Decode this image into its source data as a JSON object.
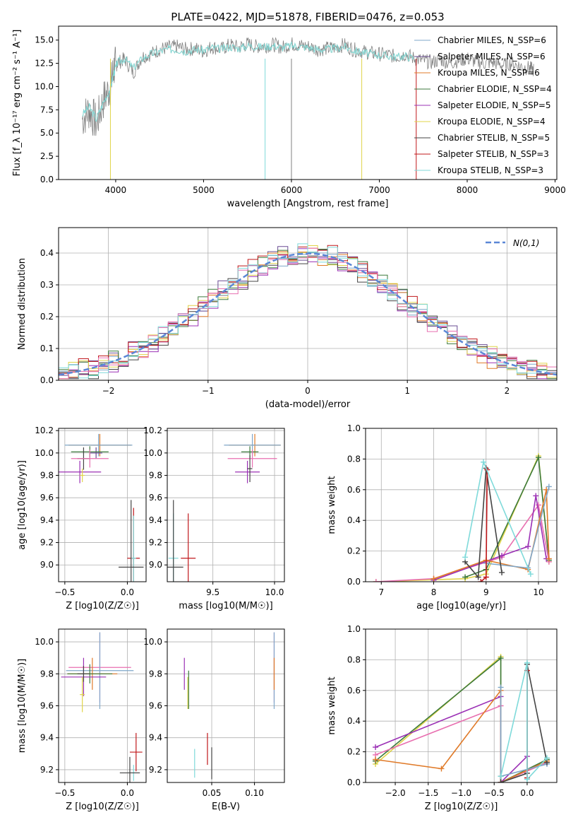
{
  "figure_title": "PLATE=0422, MJD=51878, FIBERID=0476, z=0.053",
  "chart_data": [
    {
      "id": "spectrum",
      "type": "line",
      "title": "PLATE=0422, MJD=51878, FIBERID=0476, z=0.053",
      "xlabel": "wavelength [Angstrom, rest frame]",
      "ylabel": "Flux [f_λ 10⁻¹⁷ erg cm⁻² s⁻¹ A⁻¹]",
      "xlim": [
        3350,
        9020
      ],
      "ylim": [
        0,
        16.5
      ],
      "xticks": [
        4000,
        5000,
        6000,
        7000,
        8000,
        9000
      ],
      "yticks": [
        0.0,
        2.5,
        5.0,
        7.5,
        10.0,
        12.5,
        15.0
      ],
      "grid": false,
      "legend_position": "top-right",
      "legend": [
        {
          "label": "Chabrier MILES, N_SSP=6",
          "color": "#7fa7c9"
        },
        {
          "label": "Salpeter MILES, N_SSP=6",
          "color": "#6a4c93"
        },
        {
          "label": "Kroupa MILES, N_SSP=6",
          "color": "#e07b2a"
        },
        {
          "label": "Chabrier ELODIE, N_SSP=4",
          "color": "#3c7a3c"
        },
        {
          "label": "Salpeter ELODIE, N_SSP=5",
          "color": "#9b30b5"
        },
        {
          "label": "Kroupa ELODIE, N_SSP=4",
          "color": "#e0d44a"
        },
        {
          "label": "Chabrier STELIB, N_SSP=5",
          "color": "#444444"
        },
        {
          "label": "Salpeter STELIB, N_SSP=3",
          "color": "#c0181b"
        },
        {
          "label": "Kroupa STELIB, N_SSP=3",
          "color": "#7fdada"
        }
      ],
      "observed_color": "#808080",
      "model_color": "#7fdada",
      "observed": {
        "x": [
          3620,
          3700,
          3780,
          3860,
          3940,
          3980,
          4020,
          4100,
          4200,
          4300,
          4400,
          4500,
          4600,
          4700,
          4800,
          4900,
          5000,
          5100,
          5200,
          5300,
          5400,
          5500,
          5600,
          5700,
          5800,
          5900,
          6000,
          6100,
          6200,
          6300,
          6400,
          6500,
          6600,
          6700,
          6800,
          6900,
          7000,
          7100,
          7200,
          7300,
          7400,
          7500,
          7600,
          7700,
          7800,
          7900,
          8000,
          8100,
          8200,
          8300,
          8400,
          8500,
          8600,
          8700,
          8760
        ],
        "y": [
          6.5,
          7.5,
          6.0,
          8.5,
          10.0,
          12.0,
          12.5,
          13.0,
          11.5,
          13.2,
          13.5,
          14.0,
          14.2,
          14.3,
          14.0,
          14.1,
          13.8,
          14.3,
          14.0,
          14.5,
          14.2,
          14.6,
          14.3,
          14.4,
          14.5,
          14.2,
          14.6,
          14.4,
          14.3,
          14.0,
          14.1,
          14.2,
          14.5,
          14.0,
          13.8,
          13.6,
          13.5,
          13.4,
          13.2,
          13.5,
          13.0,
          12.8,
          12.6,
          12.9,
          12.5,
          12.8,
          13.0,
          12.7,
          12.5,
          12.6,
          12.3,
          12.5,
          12.2,
          12.0,
          11.8
        ]
      },
      "model": {
        "x": [
          3620,
          3700,
          3780,
          3860,
          3940,
          3980,
          4020,
          4100,
          4200,
          4300,
          4400,
          4500,
          4600,
          4700,
          4800,
          4900,
          5000,
          5100,
          5200,
          5300,
          5400,
          5500,
          5600,
          5700,
          5800,
          5900,
          6000,
          6100,
          6200,
          6300,
          6400,
          6500,
          6600,
          6700,
          6800,
          6900,
          7000,
          7100,
          7200,
          7300,
          7400
        ],
        "y": [
          7.0,
          7.8,
          6.5,
          8.3,
          9.8,
          11.5,
          12.6,
          13.0,
          12.0,
          13.0,
          13.5,
          13.8,
          14.0,
          14.0,
          13.8,
          14.0,
          13.9,
          14.2,
          14.0,
          14.3,
          14.1,
          14.4,
          14.3,
          14.3,
          14.4,
          14.2,
          14.4,
          14.3,
          14.2,
          14.0,
          14.0,
          14.1,
          14.3,
          13.9,
          13.7,
          13.5,
          13.4,
          13.3,
          13.2,
          13.3,
          13.0
        ]
      }
    },
    {
      "id": "residuals",
      "type": "histogram",
      "xlabel": "(data-model)/error",
      "ylabel": "Normed distribution",
      "xlim": [
        -2.5,
        2.5
      ],
      "ylim": [
        0,
        0.48
      ],
      "xticks": [
        -2,
        -1,
        0,
        1,
        2
      ],
      "yticks": [
        0.0,
        0.1,
        0.2,
        0.3,
        0.4
      ],
      "grid": true,
      "legend_position": "top-right",
      "legend": [
        {
          "label": "N(0,1)",
          "color": "#5b87d6",
          "style": "dashed"
        }
      ],
      "bin_width": 0.1,
      "bins_start": -2.5,
      "series": [
        {
          "color": "#7fa7c9",
          "offset": 0.0
        },
        {
          "color": "#6a4c93",
          "offset": 0.015
        },
        {
          "color": "#e07b2a",
          "offset": -0.012
        },
        {
          "color": "#3c7a3c",
          "offset": 0.008
        },
        {
          "color": "#9b30b5",
          "offset": -0.018
        },
        {
          "color": "#e0d44a",
          "offset": 0.01
        },
        {
          "color": "#444444",
          "offset": -0.02
        },
        {
          "color": "#c0181b",
          "offset": 0.02
        },
        {
          "color": "#e86fb0",
          "offset": -0.008
        },
        {
          "color": "#7fdada",
          "offset": 0.012
        }
      ],
      "normal_curve": {
        "mean": 0,
        "sigma": 1
      }
    },
    {
      "id": "age-vs-Z",
      "type": "scatter",
      "xlabel": "Z [log10(Z/Z☉)]",
      "ylabel": "age  [log10(age/yr)]",
      "xlim": [
        -0.55,
        0.15
      ],
      "ylim": [
        8.85,
        10.22
      ],
      "xticks": [
        -0.5,
        0.0
      ],
      "yticks": [
        9.0,
        9.2,
        9.4,
        9.6,
        9.8,
        10.0,
        10.2
      ],
      "grid": true,
      "points": [
        {
          "x": -0.22,
          "y": 10.07,
          "xerr": 0.25,
          "yerr": 0.1,
          "color": "#e07b2a"
        },
        {
          "x": -0.23,
          "y": 10.07,
          "xerr": 0.27,
          "yerr": 0.1,
          "color": "#7fa7c9"
        },
        {
          "x": -0.25,
          "y": 10.0,
          "xerr": 0.05,
          "yerr": 0.05,
          "color": "#6a4c93"
        },
        {
          "x": -0.3,
          "y": 10.01,
          "xerr": 0.15,
          "yerr": 0.05,
          "color": "#3c7a3c"
        },
        {
          "x": -0.35,
          "y": 9.95,
          "xerr": 0.05,
          "yerr": 0.1,
          "color": "#444444"
        },
        {
          "x": -0.3,
          "y": 9.95,
          "xerr": 0.15,
          "yerr": 0.08,
          "color": "#e86fb0"
        },
        {
          "x": -0.38,
          "y": 9.83,
          "xerr": 0.17,
          "yerr": 0.1,
          "color": "#9b30b5"
        },
        {
          "x": -0.36,
          "y": 9.8,
          "xerr": 0.02,
          "yerr": 0.06,
          "color": "#e0d44a"
        },
        {
          "x": 0.05,
          "y": 9.06,
          "xerr": 0.05,
          "yerr": 0.45,
          "color": "#c0181b"
        },
        {
          "x": 0.05,
          "y": 9.06,
          "xerr": 0.02,
          "yerr": 0.38,
          "color": "#7fdada"
        },
        {
          "x": 0.03,
          "y": 8.98,
          "xerr": 0.1,
          "yerr": 0.6,
          "color": "#444444"
        }
      ]
    },
    {
      "id": "age-vs-mass",
      "type": "scatter",
      "xlabel": "mass [log10(M/M☉)]",
      "ylabel": "",
      "xlim": [
        9.13,
        10.08
      ],
      "ylim": [
        8.85,
        10.22
      ],
      "xticks": [
        9.5,
        10.0
      ],
      "yticks": [
        9.0,
        9.2,
        9.4,
        9.6,
        9.8,
        10.0,
        10.2
      ],
      "grid": true,
      "points": [
        {
          "x": 9.84,
          "y": 10.07,
          "xerr": 0.21,
          "yerr": 0.1,
          "color": "#e07b2a"
        },
        {
          "x": 9.82,
          "y": 10.07,
          "xerr": 0.23,
          "yerr": 0.1,
          "color": "#7fa7c9"
        },
        {
          "x": 9.8,
          "y": 10.01,
          "xerr": 0.07,
          "yerr": 0.05,
          "color": "#3c7a3c"
        },
        {
          "x": 9.82,
          "y": 9.95,
          "xerr": 0.2,
          "yerr": 0.08,
          "color": "#e86fb0"
        },
        {
          "x": 9.78,
          "y": 9.83,
          "xerr": 0.1,
          "yerr": 0.1,
          "color": "#9b30b5"
        },
        {
          "x": 9.8,
          "y": 9.86,
          "xerr": 0.02,
          "yerr": 0.12,
          "color": "#444444"
        },
        {
          "x": 9.3,
          "y": 9.06,
          "xerr": 0.06,
          "yerr": 0.4,
          "color": "#c0181b"
        },
        {
          "x": 9.18,
          "y": 9.06,
          "xerr": 0.04,
          "yerr": 0.4,
          "color": "#7fdada"
        },
        {
          "x": 9.18,
          "y": 8.98,
          "xerr": 0.08,
          "yerr": 0.6,
          "color": "#444444"
        }
      ]
    },
    {
      "id": "weight-vs-age",
      "type": "line",
      "xlabel": "age  [log10(age/yr)]",
      "ylabel": "mass weight",
      "xlim": [
        6.7,
        10.35
      ],
      "ylim": [
        0,
        1.0
      ],
      "xticks": [
        7,
        8,
        9,
        10
      ],
      "yticks": [
        0.0,
        0.2,
        0.4,
        0.6,
        0.8,
        1.0
      ],
      "grid": true,
      "series": [
        {
          "color": "#e0d44a",
          "x": [
            6.9,
            8.6,
            9.0,
            10.0,
            10.2
          ],
          "y": [
            0.0,
            0.02,
            0.05,
            0.82,
            0.13
          ]
        },
        {
          "color": "#3c7a3c",
          "x": [
            8.6,
            9.0,
            10.0,
            10.2
          ],
          "y": [
            0.03,
            0.08,
            0.81,
            0.14
          ]
        },
        {
          "color": "#e86fb0",
          "x": [
            6.9,
            8.0,
            9.3,
            10.0,
            10.2
          ],
          "y": [
            0.0,
            0.02,
            0.16,
            0.5,
            0.13
          ]
        },
        {
          "color": "#9b30b5",
          "x": [
            8.0,
            9.3,
            9.8,
            9.95,
            10.15
          ],
          "y": [
            0.01,
            0.17,
            0.23,
            0.56,
            0.15
          ]
        },
        {
          "color": "#e07b2a",
          "x": [
            8.0,
            9.0,
            9.8,
            10.15,
            10.2
          ],
          "y": [
            0.02,
            0.14,
            0.08,
            0.6,
            0.15
          ]
        },
        {
          "color": "#7fa7c9",
          "x": [
            9.0,
            9.8,
            10.2
          ],
          "y": [
            0.12,
            0.09,
            0.62
          ]
        },
        {
          "color": "#444444",
          "x": [
            8.6,
            8.85,
            9.0,
            9.3
          ],
          "y": [
            0.13,
            0.03,
            0.74,
            0.06
          ]
        },
        {
          "color": "#c0181b",
          "x": [
            8.9,
            9.0,
            9.02
          ],
          "y": [
            0.0,
            0.03,
            0.73
          ]
        },
        {
          "color": "#7fdada",
          "x": [
            8.6,
            8.95,
            9.85
          ],
          "y": [
            0.16,
            0.78,
            0.05
          ]
        }
      ]
    },
    {
      "id": "mass-vs-Z",
      "type": "scatter",
      "xlabel": "Z [log10(Z/Z☉)]",
      "ylabel": "mass [log10(M/M☉)]",
      "xlim": [
        -0.55,
        0.15
      ],
      "ylim": [
        9.12,
        10.08
      ],
      "xticks": [
        -0.5,
        0.0
      ],
      "yticks": [
        9.2,
        9.4,
        9.6,
        9.8,
        10.0
      ],
      "grid": true,
      "points": [
        {
          "x": -0.22,
          "y": 9.84,
          "xerr": 0.25,
          "yerr": 0.22,
          "color": "#e86fb0"
        },
        {
          "x": -0.22,
          "y": 9.82,
          "xerr": 0.27,
          "yerr": 0.24,
          "color": "#7fa7c9"
        },
        {
          "x": -0.28,
          "y": 9.8,
          "xerr": 0.2,
          "yerr": 0.1,
          "color": "#e07b2a"
        },
        {
          "x": -0.3,
          "y": 9.8,
          "xerr": 0.18,
          "yerr": 0.06,
          "color": "#3c7a3c"
        },
        {
          "x": -0.35,
          "y": 9.78,
          "xerr": 0.18,
          "yerr": 0.12,
          "color": "#9b30b5"
        },
        {
          "x": -0.36,
          "y": 9.67,
          "xerr": 0.02,
          "yerr": 0.11,
          "color": "#e0d44a"
        },
        {
          "x": -0.35,
          "y": 9.8,
          "xerr": 0.05,
          "yerr": 0.05,
          "color": "#444444"
        },
        {
          "x": 0.07,
          "y": 9.31,
          "xerr": 0.05,
          "yerr": 0.12,
          "color": "#c0181b"
        },
        {
          "x": 0.05,
          "y": 9.18,
          "xerr": 0.05,
          "yerr": 0.05,
          "color": "#7fdada"
        },
        {
          "x": 0.02,
          "y": 9.18,
          "xerr": 0.08,
          "yerr": 0.1,
          "color": "#444444"
        }
      ]
    },
    {
      "id": "mass-vs-EBV",
      "type": "scatter",
      "xlabel": "E(B-V)",
      "ylabel": "",
      "xlim": [
        -0.002,
        0.135
      ],
      "ylim": [
        9.12,
        10.08
      ],
      "xticks": [
        0.05,
        0.1
      ],
      "yticks": [
        9.2,
        9.4,
        9.6,
        9.8,
        10.0
      ],
      "grid": true,
      "points": [
        {
          "x": 0.123,
          "y": 9.84,
          "xerr": 0,
          "yerr": 0.22,
          "color": "#e86fb0"
        },
        {
          "x": 0.123,
          "y": 9.82,
          "xerr": 0,
          "yerr": 0.24,
          "color": "#7fa7c9"
        },
        {
          "x": 0.123,
          "y": 9.8,
          "xerr": 0,
          "yerr": 0.1,
          "color": "#e07b2a"
        },
        {
          "x": 0.018,
          "y": 9.8,
          "xerr": 0,
          "yerr": 0.1,
          "color": "#9b30b5"
        },
        {
          "x": 0.022,
          "y": 9.68,
          "xerr": 0,
          "yerr": 0.1,
          "color": "#e0d44a"
        },
        {
          "x": 0.023,
          "y": 9.7,
          "xerr": 0,
          "yerr": 0.12,
          "color": "#3c7a3c"
        },
        {
          "x": 0.045,
          "y": 9.33,
          "xerr": 0,
          "yerr": 0.1,
          "color": "#c0181b"
        },
        {
          "x": 0.05,
          "y": 9.24,
          "xerr": 0,
          "yerr": 0.1,
          "color": "#444444"
        },
        {
          "x": 0.03,
          "y": 9.24,
          "xerr": 0,
          "yerr": 0.09,
          "color": "#7fdada"
        }
      ]
    },
    {
      "id": "weight-vs-Z",
      "type": "line",
      "xlabel": "Z [log10(Z/Z☉)]",
      "ylabel": "mass weight",
      "xlim": [
        -2.45,
        0.45
      ],
      "ylim": [
        0,
        1.0
      ],
      "xticks": [
        -2.0,
        -1.5,
        -1.0,
        -0.5,
        0.0
      ],
      "yticks": [
        0.0,
        0.2,
        0.4,
        0.6,
        0.8,
        1.0
      ],
      "grid": true,
      "series": [
        {
          "color": "#e0d44a",
          "x": [
            -2.3,
            -0.4,
            -0.4,
            0.3
          ],
          "y": [
            0.12,
            0.82,
            0.0,
            0.14
          ]
        },
        {
          "color": "#3c7a3c",
          "x": [
            -2.3,
            -0.4,
            -0.4,
            0.3
          ],
          "y": [
            0.14,
            0.81,
            0.0,
            0.15
          ]
        },
        {
          "color": "#9b30b5",
          "x": [
            -2.3,
            -0.4,
            -0.4,
            0.0
          ],
          "y": [
            0.23,
            0.56,
            0.0,
            0.17
          ]
        },
        {
          "color": "#e86fb0",
          "x": [
            -2.3,
            -0.4,
            -0.4,
            0.3
          ],
          "y": [
            0.18,
            0.5,
            0.0,
            0.13
          ]
        },
        {
          "color": "#e07b2a",
          "x": [
            -2.3,
            -1.3,
            -0.4,
            -0.4,
            0.3
          ],
          "y": [
            0.15,
            0.09,
            0.6,
            0.0,
            0.14
          ]
        },
        {
          "color": "#7fa7c9",
          "x": [
            -0.4,
            -0.4,
            0.3
          ],
          "y": [
            0.62,
            0.04,
            0.12
          ]
        },
        {
          "color": "#444444",
          "x": [
            -0.4,
            -0.4,
            0.0,
            0.0,
            0.3
          ],
          "y": [
            0.04,
            0.0,
            0.06,
            0.77,
            0.13
          ]
        },
        {
          "color": "#c0181b",
          "x": [
            0.0,
            0.0
          ],
          "y": [
            0.03,
            0.73
          ]
        },
        {
          "color": "#7fdada",
          "x": [
            -0.4,
            0.0,
            0.0,
            0.3
          ],
          "y": [
            0.04,
            0.78,
            0.02,
            0.16
          ]
        }
      ]
    }
  ]
}
